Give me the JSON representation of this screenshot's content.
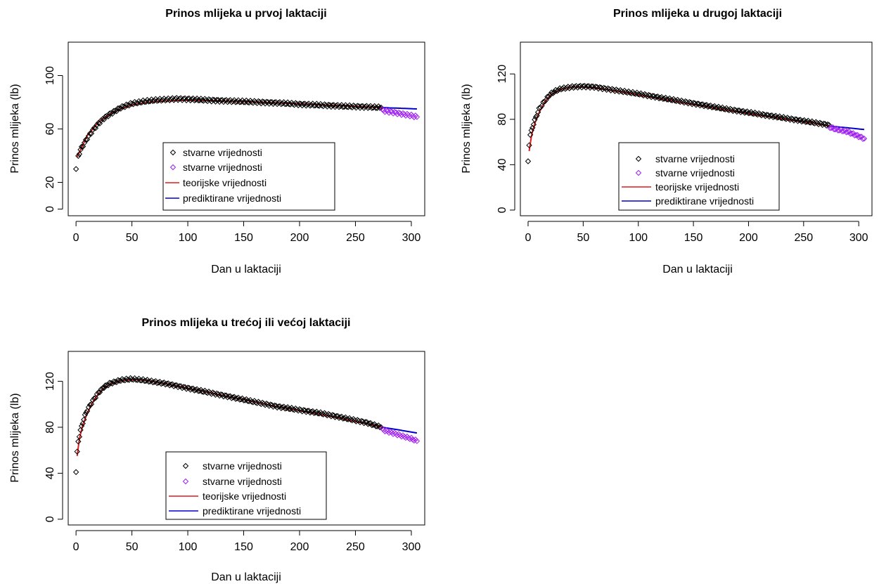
{
  "colors": {
    "observed": "#000000",
    "observed_future": "#a020f0",
    "theoretical": "#e31a1c",
    "predicted": "#0000cc"
  },
  "legend": {
    "entries": [
      {
        "label": "stvarne vrijednosti",
        "kind": "point",
        "color": "#000000"
      },
      {
        "label": "stvarne vrijednosti",
        "kind": "point",
        "color": "#a020f0"
      },
      {
        "label": "teorijske vrijednosti",
        "kind": "line",
        "color": "#e31a1c"
      },
      {
        "label": "prediktirane vrijednosti",
        "kind": "line",
        "color": "#0000cc"
      }
    ],
    "placement": "bottom-center"
  },
  "chart_data": [
    {
      "type": "scatter",
      "title": "Prinos mlijeka u prvoj laktaciji",
      "xlabel": "Dan u laktaciji",
      "ylabel": "Prinos mlijeka (lb)",
      "xlim": [
        -7,
        312
      ],
      "ylim": [
        -5,
        125
      ],
      "xticks": [
        "0",
        "50",
        "100",
        "150",
        "200",
        "250",
        "300"
      ],
      "yticks": [
        "0",
        "20",
        "60",
        "100"
      ],
      "ytick_values": [
        0,
        20,
        60,
        100
      ],
      "grid": false,
      "observed": {
        "x": [
          0,
          2,
          5,
          10,
          15,
          20,
          25,
          30,
          40,
          50,
          60,
          70,
          80,
          90,
          100,
          120,
          150,
          180,
          200,
          220,
          240,
          260,
          273
        ],
        "y": [
          30,
          40,
          46,
          53,
          59,
          64,
          68,
          71,
          76,
          79,
          80.5,
          81.5,
          82,
          82.5,
          82.3,
          81.5,
          80.5,
          79.5,
          78.5,
          77.8,
          77,
          76.5,
          76
        ]
      },
      "observed_future": {
        "x": [
          274,
          280,
          290,
          300,
          305
        ],
        "y": [
          74,
          73,
          71.5,
          70,
          69
        ]
      },
      "theoretical": {
        "x": [
          1,
          5,
          10,
          20,
          30,
          40,
          50,
          60,
          70,
          80,
          100,
          120,
          150,
          180,
          200,
          220,
          240,
          260,
          274
        ],
        "y": [
          39,
          46,
          55,
          65,
          71,
          75,
          78,
          79.5,
          80.5,
          81,
          81.5,
          81.3,
          80.5,
          79.5,
          78.8,
          78,
          77.3,
          76.5,
          76
        ]
      },
      "predicted": {
        "x": [
          274,
          290,
          305
        ],
        "y": [
          76,
          75.5,
          75
        ]
      }
    },
    {
      "type": "scatter",
      "title": "Prinos mlijeka u drugoj laktaciji",
      "xlabel": "Dan u laktaciji",
      "ylabel": "Prinos mlijeka (lb)",
      "xlim": [
        -7,
        312
      ],
      "ylim": [
        -5,
        148
      ],
      "xticks": [
        "0",
        "50",
        "100",
        "150",
        "200",
        "250",
        "300"
      ],
      "yticks": [
        "0",
        "40",
        "80",
        "120"
      ],
      "ytick_values": [
        0,
        40,
        80,
        120
      ],
      "grid": false,
      "observed": {
        "x": [
          0,
          1,
          2,
          4,
          6,
          8,
          10,
          15,
          20,
          25,
          30,
          40,
          50,
          60,
          70,
          80,
          90,
          100,
          120,
          150,
          180,
          200,
          220,
          240,
          260,
          273
        ],
        "y": [
          43,
          58,
          66,
          73,
          79,
          84,
          89,
          96,
          102,
          105,
          107,
          108.5,
          109,
          108.5,
          107,
          105.5,
          104,
          102.5,
          99,
          94,
          89,
          86,
          83,
          80,
          77,
          75
        ]
      },
      "observed_future": {
        "x": [
          274,
          280,
          290,
          300,
          305
        ],
        "y": [
          73,
          71,
          69,
          65,
          63
        ]
      },
      "theoretical": {
        "x": [
          1,
          3,
          6,
          10,
          15,
          20,
          25,
          30,
          40,
          50,
          60,
          80,
          100,
          120,
          150,
          180,
          200,
          220,
          240,
          260,
          274
        ],
        "y": [
          52,
          65,
          76,
          86,
          95,
          101,
          104,
          106.5,
          108.5,
          108.5,
          107.5,
          105,
          101.5,
          98,
          93,
          88,
          85,
          82,
          79,
          76.5,
          74
        ]
      },
      "predicted": {
        "x": [
          274,
          290,
          305
        ],
        "y": [
          74,
          72.5,
          71
        ]
      }
    },
    {
      "type": "scatter",
      "title": "Prinos mlijeka u trećoj ili većoj laktaciji",
      "xlabel": "Dan u laktaciji",
      "ylabel": "Prinos mlijeka (lb)",
      "xlim": [
        -7,
        312
      ],
      "ylim": [
        -5,
        146
      ],
      "xticks": [
        "0",
        "50",
        "100",
        "150",
        "200",
        "250",
        "300"
      ],
      "yticks": [
        "0",
        "40",
        "80",
        "120"
      ],
      "ytick_values": [
        0,
        40,
        80,
        120
      ],
      "grid": false,
      "observed": {
        "x": [
          0,
          1,
          2,
          4,
          6,
          8,
          10,
          15,
          20,
          25,
          30,
          40,
          50,
          60,
          70,
          80,
          90,
          100,
          120,
          150,
          180,
          200,
          220,
          240,
          260,
          273
        ],
        "y": [
          41,
          58,
          68,
          77,
          84,
          90,
          95,
          103,
          110,
          115,
          118,
          121,
          122,
          121,
          119.5,
          118,
          116,
          114,
          110,
          104,
          98,
          95,
          92,
          88,
          84,
          80
        ]
      },
      "observed_future": {
        "x": [
          274,
          280,
          290,
          300,
          305
        ],
        "y": [
          78,
          76,
          73,
          70,
          68
        ]
      },
      "theoretical": {
        "x": [
          1,
          3,
          6,
          10,
          15,
          20,
          25,
          30,
          40,
          50,
          60,
          80,
          100,
          120,
          150,
          180,
          200,
          220,
          240,
          260,
          274
        ],
        "y": [
          55,
          70,
          82,
          92,
          102,
          109,
          114,
          117,
          120.5,
          121.5,
          121,
          118,
          114,
          110,
          104,
          98,
          94.5,
          91,
          87,
          83,
          80
        ]
      },
      "predicted": {
        "x": [
          274,
          290,
          305
        ],
        "y": [
          80,
          77.5,
          75
        ]
      }
    }
  ]
}
